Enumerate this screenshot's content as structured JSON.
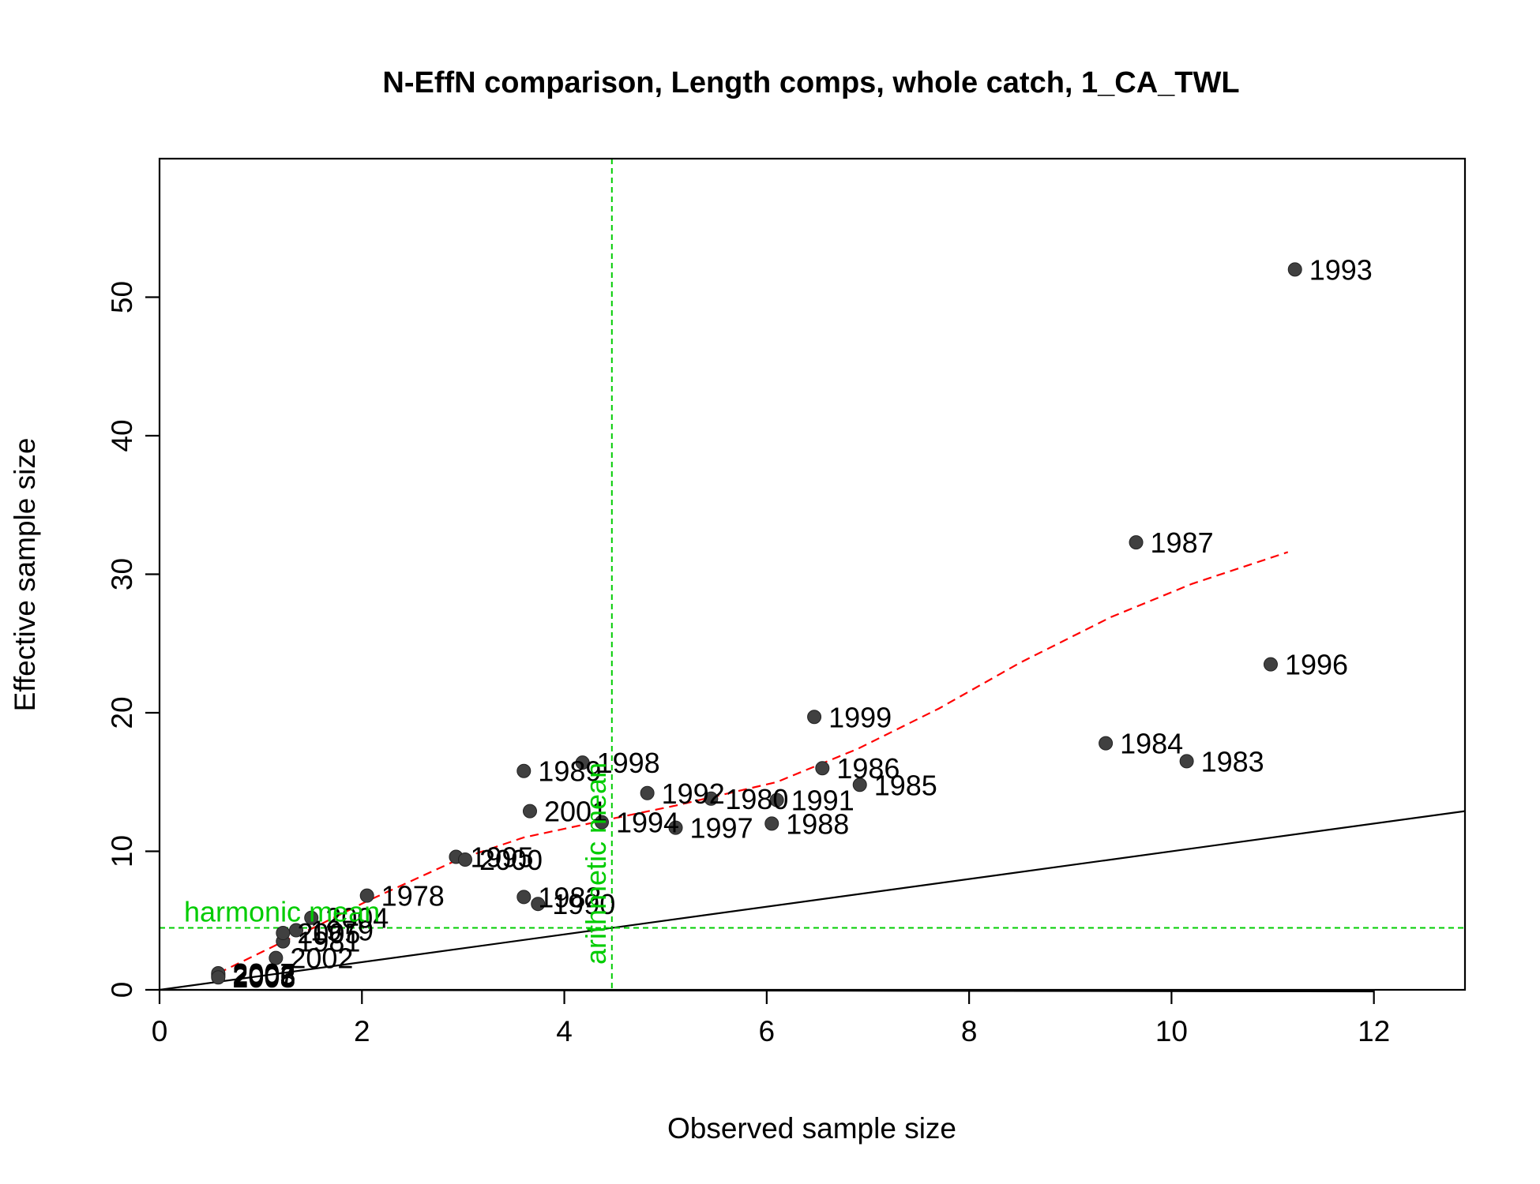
{
  "chart_data": {
    "type": "scatter",
    "title": "N-EffN comparison, Length comps, whole catch, 1_CA_TWL",
    "xlabel": "Observed sample size",
    "ylabel": "Effective sample size",
    "xlim": [
      0,
      12.9
    ],
    "ylim": [
      0,
      60
    ],
    "xticks": [
      0,
      2,
      4,
      6,
      8,
      10,
      12
    ],
    "yticks": [
      0,
      10,
      20,
      30,
      40,
      50
    ],
    "points": [
      {
        "label": "1978",
        "x": 2.05,
        "y": 6.8
      },
      {
        "label": "1979",
        "x": 1.35,
        "y": 4.3
      },
      {
        "label": "1980",
        "x": 5.45,
        "y": 13.8
      },
      {
        "label": "1981",
        "x": 1.22,
        "y": 3.5
      },
      {
        "label": "1982",
        "x": 3.6,
        "y": 6.7
      },
      {
        "label": "1983",
        "x": 10.15,
        "y": 16.5
      },
      {
        "label": "1984",
        "x": 9.35,
        "y": 17.8
      },
      {
        "label": "1985",
        "x": 6.92,
        "y": 14.8
      },
      {
        "label": "1986",
        "x": 6.55,
        "y": 16.0
      },
      {
        "label": "1987",
        "x": 9.65,
        "y": 32.3
      },
      {
        "label": "1988",
        "x": 6.05,
        "y": 12.0
      },
      {
        "label": "1989",
        "x": 3.6,
        "y": 15.8
      },
      {
        "label": "1990",
        "x": 3.74,
        "y": 6.2
      },
      {
        "label": "1991",
        "x": 6.1,
        "y": 13.7
      },
      {
        "label": "1992",
        "x": 4.82,
        "y": 14.2
      },
      {
        "label": "1993",
        "x": 11.22,
        "y": 52.0
      },
      {
        "label": "1994",
        "x": 4.37,
        "y": 12.1
      },
      {
        "label": "1995",
        "x": 2.93,
        "y": 9.6
      },
      {
        "label": "1996",
        "x": 10.98,
        "y": 23.5
      },
      {
        "label": "1997",
        "x": 5.1,
        "y": 11.7
      },
      {
        "label": "1998",
        "x": 4.18,
        "y": 16.4
      },
      {
        "label": "1999",
        "x": 6.47,
        "y": 19.7
      },
      {
        "label": "2000",
        "x": 3.02,
        "y": 9.4
      },
      {
        "label": "2001",
        "x": 3.66,
        "y": 12.9
      },
      {
        "label": "2002",
        "x": 1.15,
        "y": 2.3
      },
      {
        "label": "2003",
        "x": 0.58,
        "y": 1.1
      },
      {
        "label": "2004",
        "x": 1.5,
        "y": 5.2
      },
      {
        "label": "2005",
        "x": 1.22,
        "y": 4.1
      },
      {
        "label": "2006",
        "x": 0.58,
        "y": 1.0
      },
      {
        "label": "2007",
        "x": 0.58,
        "y": 1.2
      },
      {
        "label": "2008",
        "x": 0.58,
        "y": 0.9
      }
    ],
    "loess_line": [
      {
        "x": 0.58,
        "y": 1.2
      },
      {
        "x": 1.2,
        "y": 3.4
      },
      {
        "x": 1.5,
        "y": 4.4
      },
      {
        "x": 2.05,
        "y": 6.4
      },
      {
        "x": 2.95,
        "y": 9.4
      },
      {
        "x": 3.6,
        "y": 11.0
      },
      {
        "x": 4.37,
        "y": 12.2
      },
      {
        "x": 5.1,
        "y": 13.3
      },
      {
        "x": 6.1,
        "y": 15.0
      },
      {
        "x": 6.9,
        "y": 17.4
      },
      {
        "x": 7.7,
        "y": 20.3
      },
      {
        "x": 8.5,
        "y": 23.6
      },
      {
        "x": 9.4,
        "y": 26.9
      },
      {
        "x": 10.2,
        "y": 29.3
      },
      {
        "x": 11.15,
        "y": 31.6
      }
    ],
    "identity_line": {
      "from": [
        0,
        0
      ],
      "to": [
        12.9,
        12.9
      ]
    },
    "harmonic_mean": {
      "value": 4.47,
      "label": "harmonic mean"
    },
    "arithmetic_mean": {
      "value": 4.47,
      "label": "arithmetic mean"
    },
    "grid": false,
    "colors": {
      "points": "#404040",
      "loess": "#ff0000",
      "reference": "#00cc00",
      "identity": "#000000"
    }
  }
}
